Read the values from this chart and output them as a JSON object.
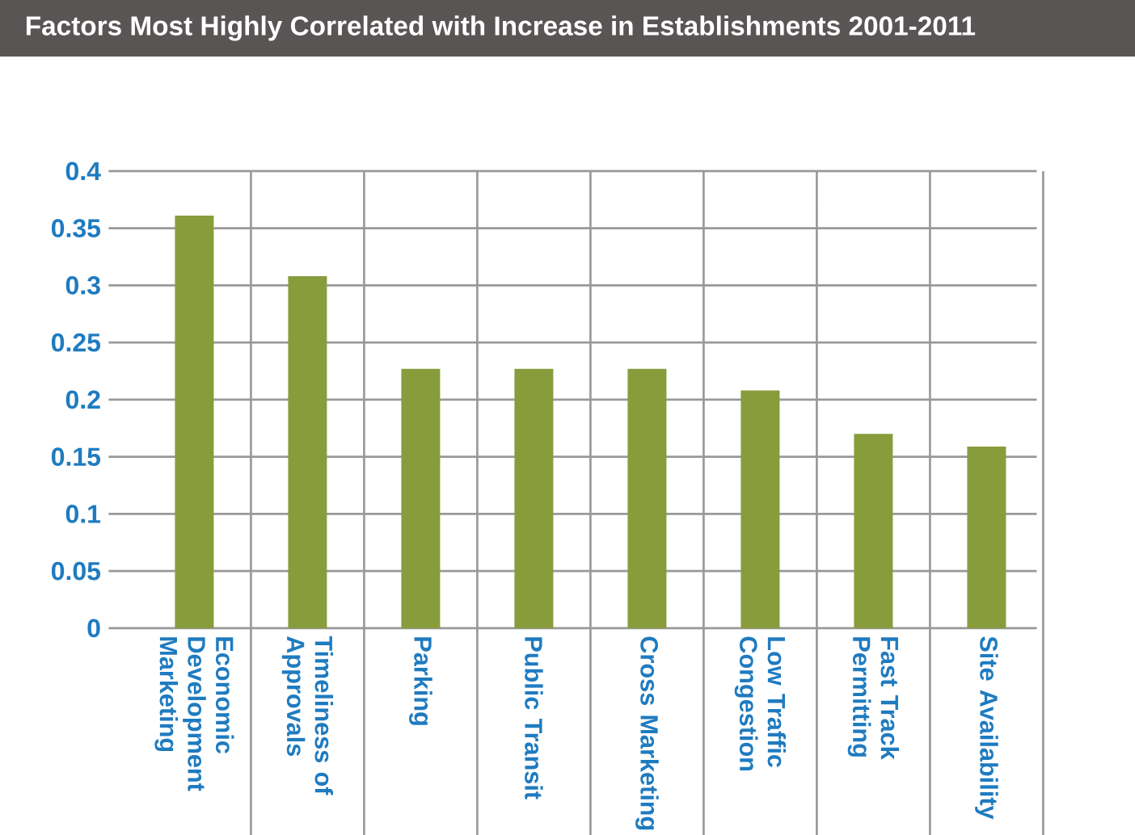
{
  "chart_data": {
    "type": "bar",
    "title": "Factors Most Highly Correlated with Increase in Establishments 2001-2011",
    "categories": [
      "Economic Development Marketing",
      "Timeliness of Approvals",
      "Parking",
      "Public Transit",
      "Cross Marketing",
      "Low Traffic Congestion",
      "Fast Track Permitting",
      "Site Availability"
    ],
    "values": [
      0.361,
      0.308,
      0.227,
      0.227,
      0.227,
      0.208,
      0.17,
      0.159
    ],
    "color": "#889c3c",
    "ylim": [
      0,
      0.4
    ],
    "yticks": [
      0,
      0.05,
      0.1,
      0.15,
      0.2,
      0.25,
      0.3,
      0.35,
      0.4
    ],
    "grid": true
  }
}
